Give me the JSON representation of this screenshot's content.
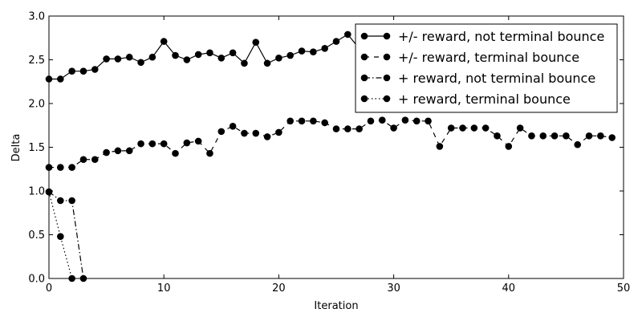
{
  "chart_data": {
    "type": "line",
    "title": "",
    "xlabel": "Iteration",
    "ylabel": "Delta",
    "xlim": [
      0,
      50
    ],
    "ylim": [
      0.0,
      3.0
    ],
    "xticks": [
      0,
      10,
      20,
      30,
      40,
      50
    ],
    "yticks": [
      0.0,
      0.5,
      1.0,
      1.5,
      2.0,
      2.5,
      3.0
    ],
    "ytick_labels": [
      "0.0",
      "0.5",
      "1.0",
      "1.5",
      "2.0",
      "2.5",
      "3.0"
    ],
    "grid": false,
    "legend": "top-right",
    "series": [
      {
        "name": "+/- reward, not terminal bounce",
        "dash": "solid",
        "x": [
          0,
          1,
          2,
          3,
          4,
          5,
          6,
          7,
          8,
          9,
          10,
          11,
          12,
          13,
          14,
          15,
          16,
          17,
          18,
          19,
          20,
          21,
          22,
          23,
          24,
          25,
          26,
          27,
          28,
          29,
          30,
          31,
          32,
          33,
          34,
          35,
          36,
          37,
          38,
          39,
          40,
          41,
          42,
          43,
          44,
          45,
          46,
          47,
          48,
          49
        ],
        "values": [
          2.28,
          2.28,
          2.37,
          2.37,
          2.39,
          2.51,
          2.51,
          2.53,
          2.47,
          2.53,
          2.71,
          2.55,
          2.5,
          2.56,
          2.58,
          2.52,
          2.58,
          2.46,
          2.7,
          2.46,
          2.52,
          2.55,
          2.6,
          2.59,
          2.63,
          2.71,
          2.79,
          2.63,
          2.69,
          2.66,
          2.69,
          2.67,
          2.65,
          2.68,
          2.61,
          2.66,
          2.62,
          2.65,
          2.67,
          2.63,
          2.65,
          2.64,
          2.62,
          2.66,
          2.64,
          2.63,
          2.65,
          2.66,
          2.64,
          2.62
        ]
      },
      {
        "name": "+/- reward, terminal bounce",
        "dash": "dashed",
        "x": [
          0,
          1,
          2,
          3,
          4,
          5,
          6,
          7,
          8,
          9,
          10,
          11,
          12,
          13,
          14,
          15,
          16,
          17,
          18,
          19,
          20,
          21,
          22,
          23,
          24,
          25,
          26,
          27,
          28,
          29,
          30,
          31,
          32,
          33,
          34,
          35,
          36,
          37,
          38,
          39,
          40,
          41,
          42,
          43,
          44,
          45,
          46,
          47,
          48,
          49
        ],
        "values": [
          1.27,
          1.27,
          1.27,
          1.36,
          1.36,
          1.44,
          1.46,
          1.46,
          1.54,
          1.54,
          1.54,
          1.43,
          1.55,
          1.57,
          1.43,
          1.68,
          1.74,
          1.66,
          1.66,
          1.62,
          1.67,
          1.8,
          1.8,
          1.8,
          1.78,
          1.71,
          1.71,
          1.71,
          1.8,
          1.81,
          1.72,
          1.81,
          1.8,
          1.8,
          1.51,
          1.72,
          1.72,
          1.72,
          1.72,
          1.63,
          1.51,
          1.72,
          1.63,
          1.63,
          1.63,
          1.63,
          1.53,
          1.63,
          1.63,
          1.61
        ]
      },
      {
        "name": "+ reward, not terminal bounce",
        "dash": "dashdot",
        "x": [
          0,
          1,
          2,
          3
        ],
        "values": [
          0.99,
          0.89,
          0.89,
          0.0
        ]
      },
      {
        "name": "+ reward, terminal bounce",
        "dash": "dotted",
        "x": [
          0,
          1,
          2
        ],
        "values": [
          0.99,
          0.48,
          0.0
        ]
      }
    ]
  }
}
